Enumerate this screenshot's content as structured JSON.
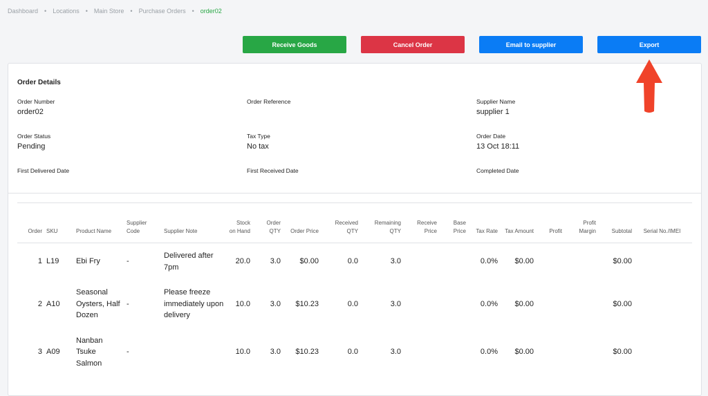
{
  "breadcrumb": [
    "Dashboard",
    "Locations",
    "Main Store",
    "Purchase Orders",
    "order02"
  ],
  "buttons": [
    "Receive Goods",
    "Cancel Order",
    "Email to supplier",
    "Export"
  ],
  "details": {
    "title": "Order Details",
    "fields": [
      {
        "label": "Order Number",
        "value": "order02"
      },
      {
        "label": "Order Reference",
        "value": null
      },
      {
        "label": "Supplier Name",
        "value": "supplier 1"
      },
      {
        "label": "Order Status",
        "value": "Pending"
      },
      {
        "label": "Tax Type",
        "value": "No tax"
      },
      {
        "label": "Order Date",
        "value": "13 Oct 18:11"
      },
      {
        "label": "First Delivered Date",
        "value": null
      },
      {
        "label": "First Received Date",
        "value": null
      },
      {
        "label": "Completed Date",
        "value": null
      }
    ]
  },
  "table": {
    "headers": [
      "Order",
      "SKU",
      "Product Name",
      "Supplier Code",
      "Supplier Note",
      "Stock on Hand",
      "Order QTY",
      "Order Price",
      "Received QTY",
      "Remaining QTY",
      "Receive Price",
      "Base Price",
      "Tax Rate",
      "Tax Amount",
      "Profit",
      "Profit Margin",
      "Subtotal",
      "Serial No./IMEI"
    ],
    "rows": [
      [
        "1",
        "L19",
        "Ebi Fry",
        "-",
        "Delivered after 7pm",
        "20.0",
        "3.0",
        "$0.00",
        "0.0",
        "3.0",
        null,
        null,
        "0.0%",
        "$0.00",
        null,
        null,
        "$0.00",
        null
      ],
      [
        "2",
        "A10",
        "Seasonal Oysters, Half Dozen",
        "-",
        "Please freeze immediately upon delivery",
        "10.0",
        "3.0",
        "$10.23",
        "0.0",
        "3.0",
        null,
        null,
        "0.0%",
        "$0.00",
        null,
        null,
        "$0.00",
        null
      ],
      [
        "3",
        "A09",
        "Nanban Tsuke Salmon",
        "-",
        null,
        "10.0",
        "3.0",
        "$10.23",
        "0.0",
        "3.0",
        null,
        null,
        "0.0%",
        "$0.00",
        null,
        null,
        "$0.00",
        null
      ]
    ]
  }
}
